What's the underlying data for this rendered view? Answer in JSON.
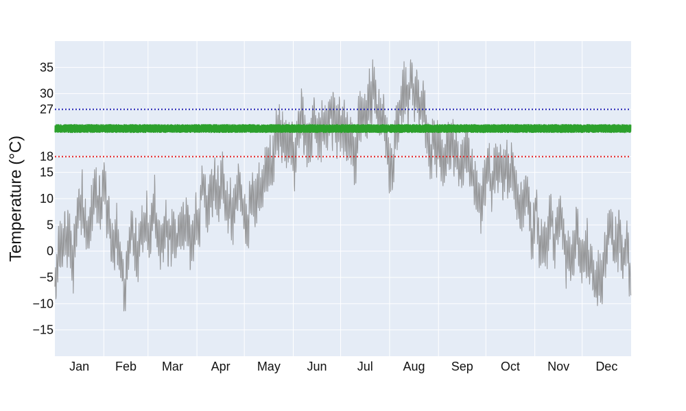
{
  "chart_data": {
    "type": "line",
    "title": "",
    "xlabel": "",
    "ylabel": "Temperature (°C)",
    "x_range": [
      "01-01",
      "12-31"
    ],
    "ylim": [
      -20,
      40
    ],
    "x_ticks": [
      "Jan",
      "Feb",
      "Mar",
      "Apr",
      "May",
      "Jun",
      "Jul",
      "Aug",
      "Sep",
      "Oct",
      "Nov",
      "Dec"
    ],
    "y_ticks": [
      -15,
      -10,
      -5,
      0,
      5,
      10,
      15,
      18,
      27,
      30,
      35
    ],
    "grid": true,
    "legend": "none",
    "colors": {
      "plot_bg": "#e5ecf6",
      "grid": "#ffffff",
      "outdoor": "#888888",
      "indoor": "#2ca02c",
      "lower_threshold": "#e31a1c",
      "upper_threshold": "#1f1fb4"
    },
    "thresholds": [
      {
        "value": 18,
        "style": "dotted",
        "color": "#e31a1c"
      },
      {
        "value": 27,
        "style": "dotted",
        "color": "#1f1fb4"
      }
    ],
    "series": [
      {
        "id": "outdoor",
        "color": "#888888",
        "x": [
          "01-01",
          "01-08",
          "01-15",
          "01-22",
          "01-29",
          "02-05",
          "02-12",
          "02-19",
          "02-26",
          "03-05",
          "03-12",
          "03-19",
          "03-26",
          "04-02",
          "04-09",
          "04-16",
          "04-23",
          "04-30",
          "05-07",
          "05-14",
          "05-21",
          "05-28",
          "06-04",
          "06-11",
          "06-18",
          "06-25",
          "07-02",
          "07-09",
          "07-16",
          "07-23",
          "07-30",
          "08-06",
          "08-13",
          "08-20",
          "08-27",
          "09-03",
          "09-10",
          "09-17",
          "09-24",
          "10-01",
          "10-08",
          "10-15",
          "10-22",
          "10-29",
          "11-05",
          "11-12",
          "11-19",
          "11-26",
          "12-03",
          "12-10",
          "12-17",
          "12-24",
          "12-31"
        ],
        "y": [
          -5,
          -2,
          3,
          6,
          4,
          1,
          -7,
          -3,
          2,
          5,
          8,
          4,
          2,
          6,
          10,
          8,
          9,
          12,
          13,
          14,
          17,
          18,
          21,
          22,
          23,
          24,
          25,
          25,
          24,
          25,
          25,
          25,
          24,
          23,
          22,
          20,
          18,
          16,
          15,
          14,
          13,
          12,
          10,
          7,
          4,
          3,
          2,
          1,
          2,
          3,
          2,
          1,
          -3
        ],
        "range": [
          -16.5,
          36.5
        ]
      },
      {
        "id": "indoor",
        "color": "#2ca02c",
        "x": [
          "01-01",
          "12-31"
        ],
        "y": [
          23.2,
          23.2
        ],
        "range": [
          22.5,
          24.2
        ]
      }
    ]
  }
}
